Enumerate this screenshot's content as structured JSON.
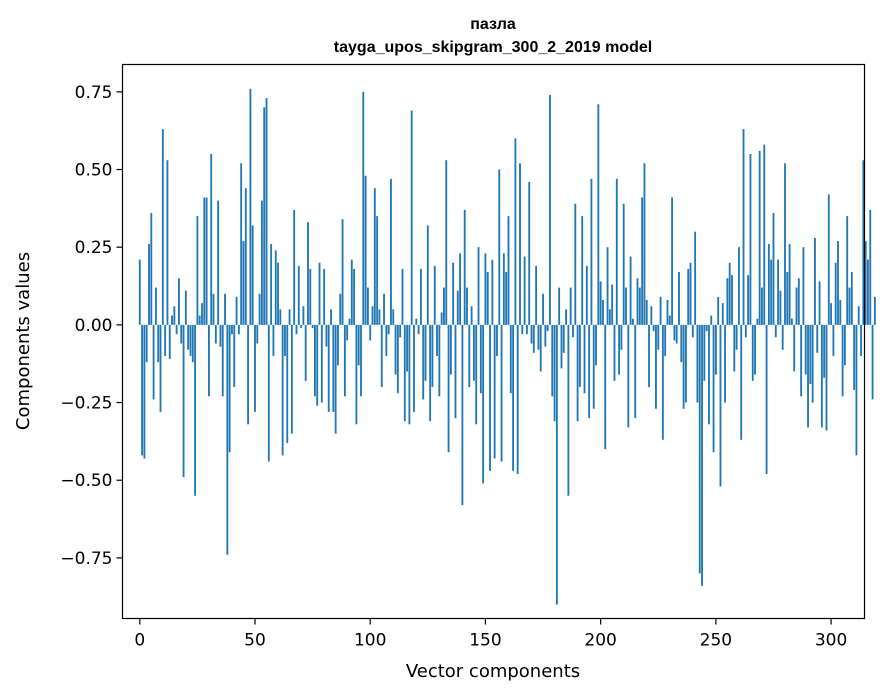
{
  "chart_data": {
    "type": "bar",
    "title": "пазла",
    "subtitle": "tayga_upos_skipgram_300_2_2019 model",
    "xlabel": "Vector components",
    "ylabel": "Components values",
    "xlim": [
      -7.5,
      314.5
    ],
    "ylim": [
      -0.945,
      0.838
    ],
    "xticks": [
      0,
      50,
      100,
      150,
      200,
      250,
      300
    ],
    "xtick_labels": [
      "0",
      "50",
      "100",
      "150",
      "200",
      "250",
      "300"
    ],
    "yticks": [
      -0.75,
      -0.5,
      -0.25,
      0.0,
      0.25,
      0.5,
      0.75
    ],
    "ytick_labels": [
      "−0.75",
      "−0.50",
      "−0.25",
      "0.00",
      "0.25",
      "0.50",
      "0.75"
    ],
    "grid": false,
    "bar_color": "#1f77b4",
    "values": [
      0.21,
      -0.42,
      -0.43,
      -0.12,
      0.26,
      0.36,
      -0.24,
      0.12,
      -0.12,
      -0.28,
      0.63,
      -0.1,
      0.53,
      -0.11,
      0.03,
      0.06,
      -0.03,
      0.15,
      -0.06,
      -0.49,
      0.11,
      -0.08,
      -0.1,
      -0.12,
      -0.55,
      0.35,
      0.03,
      0.07,
      0.41,
      0.41,
      -0.23,
      0.55,
      0.1,
      -0.06,
      0.4,
      -0.07,
      -0.23,
      0.1,
      -0.74,
      -0.41,
      -0.03,
      -0.2,
      0.09,
      -0.03,
      0.52,
      0.27,
      0.44,
      -0.32,
      0.76,
      0.32,
      -0.28,
      -0.06,
      0.1,
      0.4,
      0.7,
      0.73,
      -0.44,
      0.26,
      -0.1,
      0.24,
      0.2,
      0.05,
      -0.42,
      -0.1,
      -0.38,
      0.05,
      -0.35,
      0.37,
      -0.03,
      0.19,
      -0.01,
      0.06,
      -0.18,
      0.33,
      0.18,
      -0.01,
      -0.23,
      -0.26,
      0.2,
      -0.25,
      0.18,
      -0.07,
      -0.28,
      0.05,
      -0.28,
      -0.35,
      -0.13,
      0.1,
      0.34,
      -0.23,
      -0.05,
      0.02,
      0.21,
      0.18,
      -0.32,
      -0.13,
      -0.23,
      0.75,
      0.48,
      0.12,
      -0.05,
      0.06,
      0.44,
      0.35,
      0.05,
      -0.2,
      0.1,
      -0.1,
      -0.03,
      0.47,
      0.05,
      -0.16,
      -0.22,
      -0.04,
      0.18,
      -0.31,
      -0.15,
      -0.32,
      0.69,
      -0.28,
      0.02,
      -0.03,
      0.18,
      -0.24,
      -0.18,
      0.32,
      -0.31,
      -0.2,
      0.19,
      -0.1,
      -0.23,
      0.04,
      0.12,
      0.53,
      -0.41,
      -0.16,
      0.2,
      -0.3,
      0.11,
      0.23,
      -0.58,
      0.37,
      0.12,
      -0.2,
      0.06,
      -0.18,
      -0.32,
      0.25,
      -0.22,
      -0.51,
      0.23,
      0.17,
      -0.47,
      0.21,
      -0.43,
      -0.1,
      0.5,
      -0.44,
      0.23,
      0.17,
      0.35,
      -0.22,
      -0.47,
      0.6,
      -0.48,
      0.52,
      -0.03,
      0.22,
      -0.03,
      0.46,
      -0.06,
      -0.09,
      0.19,
      -0.08,
      -0.15,
      0.1,
      -0.07,
      -0.02,
      0.74,
      -0.23,
      -0.31,
      -0.9,
      0.12,
      -0.14,
      -0.09,
      0.05,
      -0.55,
      0.12,
      -0.04,
      0.39,
      -0.31,
      -0.2,
      0.35,
      -0.22,
      0.19,
      -0.3,
      0.47,
      -0.27,
      -0.13,
      0.71,
      0.14,
      0.08,
      -0.4,
      0.25,
      0.05,
      0.13,
      -0.18,
      0.47,
      -0.16,
      -0.08,
      0.39,
      0.12,
      -0.33,
      0.22,
      0.02,
      -0.3,
      0.15,
      0.12,
      0.41,
      0.52,
      0.08,
      -0.2,
      0.06,
      -0.02,
      -0.27,
      -0.08,
      0.09,
      -0.37,
      -0.1,
      0.08,
      0.03,
      0.41,
      -0.05,
      -0.06,
      0.17,
      -0.12,
      -0.27,
      -0.25,
      0.18,
      0.2,
      -0.04,
      0.3,
      -0.25,
      -0.8,
      -0.84,
      -0.18,
      -0.02,
      -0.32,
      0.03,
      -0.41,
      -0.16,
      0.09,
      -0.52,
      0.07,
      -0.25,
      0.15,
      0.2,
      0.16,
      -0.15,
      -0.08,
      0.25,
      -0.37,
      0.63,
      -0.04,
      0.16,
      0.55,
      -0.18,
      -0.16,
      0.02,
      0.56,
      0.12,
      0.58,
      -0.48,
      0.26,
      0.21,
      0.36,
      -0.04,
      0.21,
      0.11,
      -0.08,
      0.52,
      0.17,
      0.26,
      0.02,
      -0.15,
      0.12,
      0.15,
      -0.23,
      0.25,
      -0.16,
      -0.33,
      -0.19,
      -0.25,
      0.28,
      -0.09,
      0.14,
      -0.33,
      -0.17,
      -0.34,
      0.42,
      0.07,
      -0.1,
      0.2,
      0.27,
      0.08,
      -0.23,
      -0.13,
      0.35,
      0.12,
      0.17,
      -0.21,
      -0.42,
      0.06,
      -0.1,
      0.53,
      0.27,
      0.21,
      0.37,
      -0.24,
      0.09
    ]
  }
}
